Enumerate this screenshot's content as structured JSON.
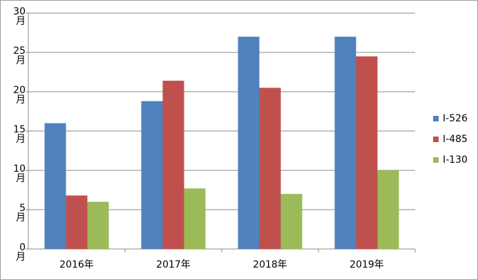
{
  "chart_data": {
    "type": "bar",
    "categories": [
      "2016年",
      "2017年",
      "2018年",
      "2019年"
    ],
    "series": [
      {
        "name": "I-526",
        "color": "#4f81bd",
        "values": [
          16,
          18.8,
          27,
          27
        ]
      },
      {
        "name": "I-485",
        "color": "#c0504d",
        "values": [
          6.8,
          21.4,
          20.5,
          24.5
        ]
      },
      {
        "name": "I-130",
        "color": "#9bbb59",
        "values": [
          6,
          7.7,
          7,
          10
        ]
      }
    ],
    "ylim": [
      0,
      30
    ],
    "yticks": [
      {
        "value": 0,
        "label": "0月"
      },
      {
        "value": 5,
        "label": "5月"
      },
      {
        "value": 10,
        "label": "10月"
      },
      {
        "value": 15,
        "label": "15月"
      },
      {
        "value": 20,
        "label": "20月"
      },
      {
        "value": 25,
        "label": "25月"
      },
      {
        "value": 30,
        "label": "30月"
      }
    ],
    "grid": true,
    "legend": "right"
  }
}
